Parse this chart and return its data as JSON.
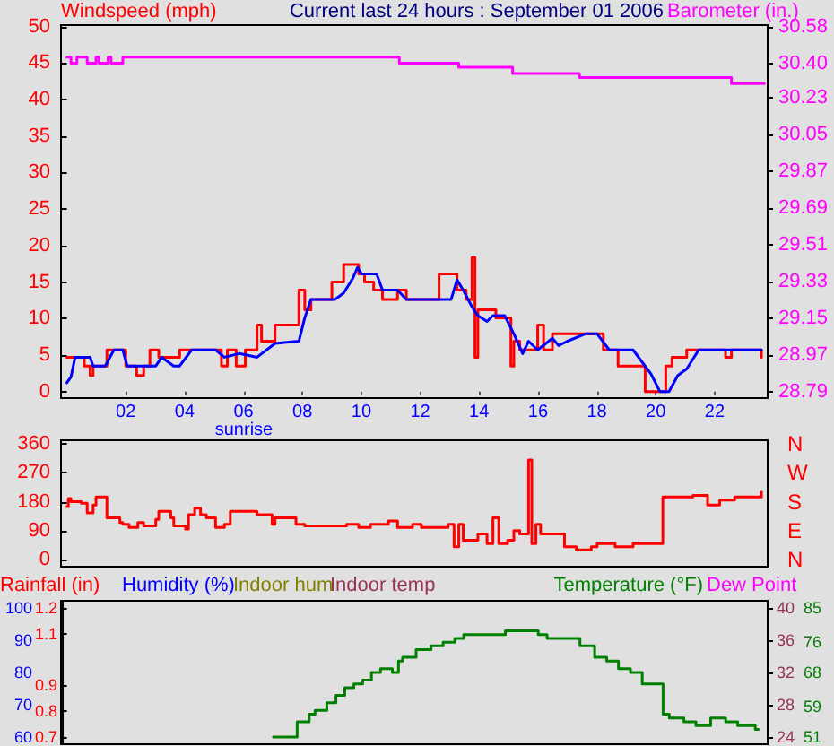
{
  "chart_data": [
    {
      "type": "line",
      "title": "Current last 24 hours : September 01 2006",
      "ylabel": "Windspeed (mph)",
      "y2label": "Barometer (in.)",
      "xlim": [
        -0.2,
        23.8
      ],
      "xticks": [
        {
          "value": 2,
          "label": "02"
        },
        {
          "value": 4,
          "label": "04"
        },
        {
          "value": 6,
          "label": "06"
        },
        {
          "value": 8,
          "label": "08"
        },
        10,
        12,
        14,
        16,
        18,
        20,
        22
      ],
      "ylim": [
        -0.9,
        50.2
      ],
      "yticks": [
        0,
        5,
        10,
        15,
        20,
        25,
        30,
        35,
        40,
        45,
        50
      ],
      "y2lim": [
        28.758,
        30.587
      ],
      "y2ticks": [
        28.79,
        28.97,
        29.15,
        29.33,
        29.51,
        29.69,
        29.87,
        30.05,
        30.23,
        {
          "value": 30.4,
          "label": "30.40"
        },
        30.58
      ],
      "annotations": [
        "sunrise"
      ],
      "series": [
        {
          "type": "step",
          "color": "#ff0000",
          "x": [
            0,
            0.59,
            0.79,
            0.89,
            1.36,
            2.0,
            2.37,
            2.61,
            2.82,
            3.12,
            3.83,
            5.25,
            5.45,
            5.75,
            6.06,
            6.46,
            6.61,
            7.07,
            7.88,
            8.08,
            8.29,
            9.0,
            9.4,
            9.91,
            10.11,
            10.42,
            10.72,
            11.23,
            11.53,
            12.64,
            13.25,
            13.56,
            13.76,
            13.86,
            13.96,
            14.57,
            15.08,
            15.18,
            15.38,
            15.99,
            16.19,
            16.49,
            18.22,
            18.72,
            19.64,
            20.34,
            20.55,
            21.05,
            22.37,
            22.57,
            23.59,
            23.59
          ],
          "values": [
            4.7,
            4.7,
            3.5,
            2.2,
            3.5,
            5.7,
            3.5,
            2.2,
            3.5,
            5.7,
            4.7,
            5.7,
            3.5,
            5.7,
            3.5,
            5.7,
            9.1,
            6.9,
            9.1,
            13.9,
            11.2,
            12.6,
            15,
            17.4,
            16.1,
            15,
            13.9,
            12.6,
            13.9,
            12.6,
            16.1,
            13.9,
            12.6,
            18.4,
            4.7,
            11.2,
            10.1,
            3.5,
            6.9,
            5.7,
            9.1,
            5.7,
            7.9,
            5.7,
            3.5,
            0,
            3.5,
            4.7,
            5.7,
            4.7,
            5.7,
            4.7
          ]
        },
        {
          "color": "#0000ff",
          "x": [
            0,
            0.14,
            0.28,
            0.79,
            0.89,
            1.3,
            1.6,
            1.9,
            2.05,
            3.02,
            3.22,
            3.63,
            3.83,
            4.24,
            5.05,
            5.35,
            5.86,
            6.46,
            7.07,
            7.88,
            8.08,
            8.29,
            9.1,
            9.4,
            9.71,
            9.87,
            10.01,
            10.52,
            10.72,
            11.23,
            11.53,
            13.05,
            13.25,
            13.46,
            13.76,
            13.96,
            14.27,
            14.47,
            14.87,
            15.18,
            15.48,
            15.68,
            15.99,
            16.49,
            16.7,
            17.0,
            17.61,
            18.01,
            18.42,
            19.23,
            19.84,
            20.14,
            20.45,
            20.75,
            21.05,
            21.46,
            23.59
          ],
          "values": [
            1.2,
            2,
            4.7,
            4.7,
            3.5,
            3.5,
            5.7,
            5.7,
            3.5,
            3.5,
            4.7,
            3.5,
            3.5,
            5.7,
            5.7,
            4.7,
            5.2,
            4.7,
            6.6,
            6.9,
            10.1,
            12.6,
            12.6,
            13.5,
            15.5,
            17.0,
            16.1,
            16.1,
            13.9,
            13.9,
            12.6,
            12.6,
            15.3,
            13.9,
            11.6,
            10.4,
            9.6,
            10.4,
            10.4,
            7.9,
            5.2,
            6.9,
            5.7,
            7.3,
            6.3,
            6.9,
            7.9,
            7.9,
            5.7,
            5.7,
            2.4,
            0,
            0,
            2.2,
            3.1,
            5.7,
            5.7
          ]
        },
        {
          "type": "step",
          "axis": "y2",
          "color": "#ff00ff",
          "x": [
            0,
            0.14,
            0.34,
            0.69,
            0.99,
            1.09,
            1.4,
            1.5,
            1.9,
            11.29,
            13.31,
            15.14,
            17.41,
            22.57,
            23.69,
            23.69
          ],
          "values": [
            30.43,
            30.43,
            30.4,
            30.43,
            30.4,
            30.43,
            30.4,
            30.43,
            30.4,
            30.43,
            30.4,
            30.38,
            30.35,
            30.33,
            30.3,
            30.3
          ]
        }
      ]
    },
    {
      "type": "step",
      "tick_labels": "y",
      "xlim": [
        -0.2,
        23.8
      ],
      "ylim": [
        -22,
        371
      ],
      "yticks": [
        0,
        90,
        180,
        270,
        360
      ],
      "annotations": [
        "N",
        "W",
        "S",
        "E",
        "N"
      ],
      "series": [
        {
          "color": "#ff0000",
          "x": [
            0,
            0.05,
            0.14,
            0.49,
            0.69,
            0.89,
            0.99,
            1.36,
            1.8,
            1.9,
            2.11,
            2.41,
            2.61,
            3.02,
            3.12,
            3.53,
            3.63,
            4.03,
            4.13,
            4.34,
            4.54,
            4.74,
            5.05,
            5.35,
            5.55,
            6.46,
            6.97,
            7.07,
            7.78,
            8.08,
            9.5,
            9.91,
            10.31,
            10.92,
            11.23,
            11.74,
            12.04,
            12.95,
            13.15,
            13.31,
            13.46,
            13.96,
            14.27,
            14.47,
            14.67,
            14.97,
            15.18,
            15.38,
            15.68,
            15.79,
            15.93,
            16.09,
            16.9,
            17.3,
            17.81,
            18.01,
            18.62,
            19.23,
            20.24,
            21.26,
            21.76,
            22.17,
            22.68,
            23.59,
            23.59
          ],
          "values": [
            165,
            165,
            190,
            180,
            175,
            145,
            170,
            195,
            130,
            115,
            110,
            100,
            115,
            105,
            125,
            150,
            130,
            105,
            95,
            140,
            160,
            140,
            130,
            100,
            110,
            150,
            140,
            110,
            130,
            110,
            105,
            110,
            100,
            110,
            120,
            100,
            110,
            100,
            110,
            40,
            110,
            60,
            80,
            50,
            130,
            50,
            60,
            90,
            80,
            310,
            50,
            110,
            80,
            40,
            30,
            40,
            50,
            40,
            50,
            195,
            200,
            170,
            185,
            195,
            210
          ]
        }
      ]
    },
    {
      "type": "step",
      "tick_labels": "y",
      "xlim": [
        -0.2,
        23.8
      ],
      "ylabel": "Humidity (%)",
      "ylim": [
        57.8,
        102.2
      ],
      "yticks": [
        60,
        70,
        80,
        90,
        100
      ],
      "y2label": "Temperature (°F)",
      "y2lim": [
        49.1,
        86.9
      ],
      "y2ticks": [
        51,
        59,
        68,
        76,
        85
      ],
      "annotations": [
        "Indoor hum",
        "Dew Point"
      ],
      "series": [
        {
          "axis": "y2",
          "color": "#008000",
          "x": [
            6.97,
            7.78,
            8.19,
            8.39,
            8.79,
            9.1,
            9.4,
            9.71,
            10.01,
            10.31,
            10.62,
            11.02,
            11.23,
            11.37,
            11.83,
            12.34,
            12.75,
            13.15,
            13.45,
            13.96,
            14.87,
            15.18,
            15.99,
            16.29,
            16.9,
            17.41,
            17.91,
            18.32,
            18.72,
            19.13,
            19.53,
            20.24,
            20.45,
            20.95,
            21.36,
            21.86,
            22.37,
            22.78,
            23.38,
            23.48
          ],
          "values": [
            51,
            51,
            55,
            57,
            58,
            60,
            62,
            64,
            65,
            66,
            68,
            69,
            68,
            71,
            72,
            74,
            75,
            76,
            77,
            78,
            78,
            79,
            79,
            78,
            77,
            77,
            75,
            72,
            71,
            69,
            68,
            65,
            57,
            56,
            55,
            54,
            56,
            55,
            54,
            53
          ]
        }
      ]
    },
    {
      "type": "line",
      "tick_labels": "y",
      "xlim": [
        -0.2,
        23.8
      ],
      "ylabel": "Rainfall (in)",
      "ylim": [
        0.673,
        1.227
      ],
      "yticks": [
        0.7,
        0.8,
        0.9,
        1.1,
        1.2
      ],
      "annotations": [
        "Indoor temp"
      ],
      "y2lim": [
        23.1,
        40.9
      ],
      "y2ticks": [
        24,
        28,
        32,
        36,
        40
      ]
    }
  ]
}
